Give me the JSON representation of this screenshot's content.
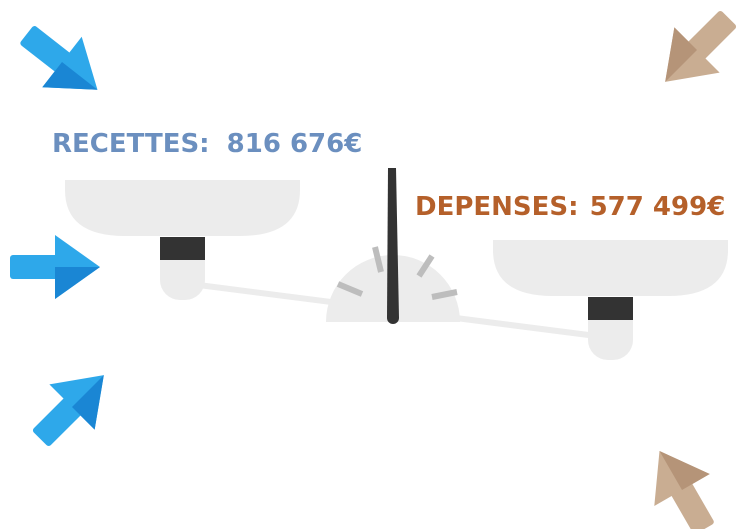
{
  "recettes": {
    "label": "RECETTES:",
    "amount": "816 676€"
  },
  "depenses": {
    "label": "DEPENSES:",
    "amount": "577 499€"
  }
}
